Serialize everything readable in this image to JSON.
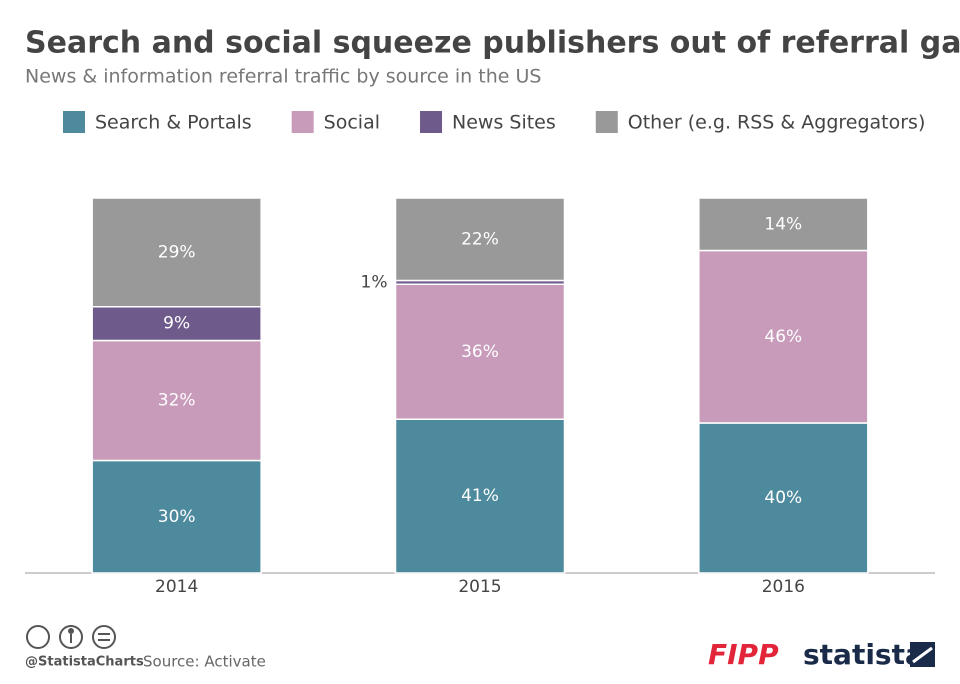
{
  "chart_data": {
    "type": "stacked_bar",
    "title": "Search and social squeeze publishers out of referral game",
    "subtitle": "News & information referral traffic by source in the US",
    "categories": [
      "2014",
      "2015",
      "2016"
    ],
    "series": [
      {
        "name": "Search & Portals",
        "color": "#4e8a9e",
        "values": [
          30,
          41,
          40
        ],
        "value_labels": [
          "30%",
          "41%",
          "40%"
        ]
      },
      {
        "name": "Social",
        "color": "#c89bbb",
        "values": [
          32,
          36,
          46
        ],
        "value_labels": [
          "32%",
          "36%",
          "46%"
        ]
      },
      {
        "name": "News Sites",
        "color": "#6e5b8c",
        "values": [
          9,
          1,
          null
        ],
        "value_labels": [
          "9%",
          "1%",
          null
        ]
      },
      {
        "name": "Other (e.g. RSS & Aggregators)",
        "color": "#999999",
        "values": [
          29,
          22,
          14
        ],
        "value_labels": [
          "29%",
          "22%",
          "14%"
        ]
      }
    ],
    "ylim": [
      0,
      100
    ],
    "credit": "@StatistaCharts",
    "source": "Source: Activate",
    "logos": [
      "FIPP",
      "statista"
    ]
  }
}
